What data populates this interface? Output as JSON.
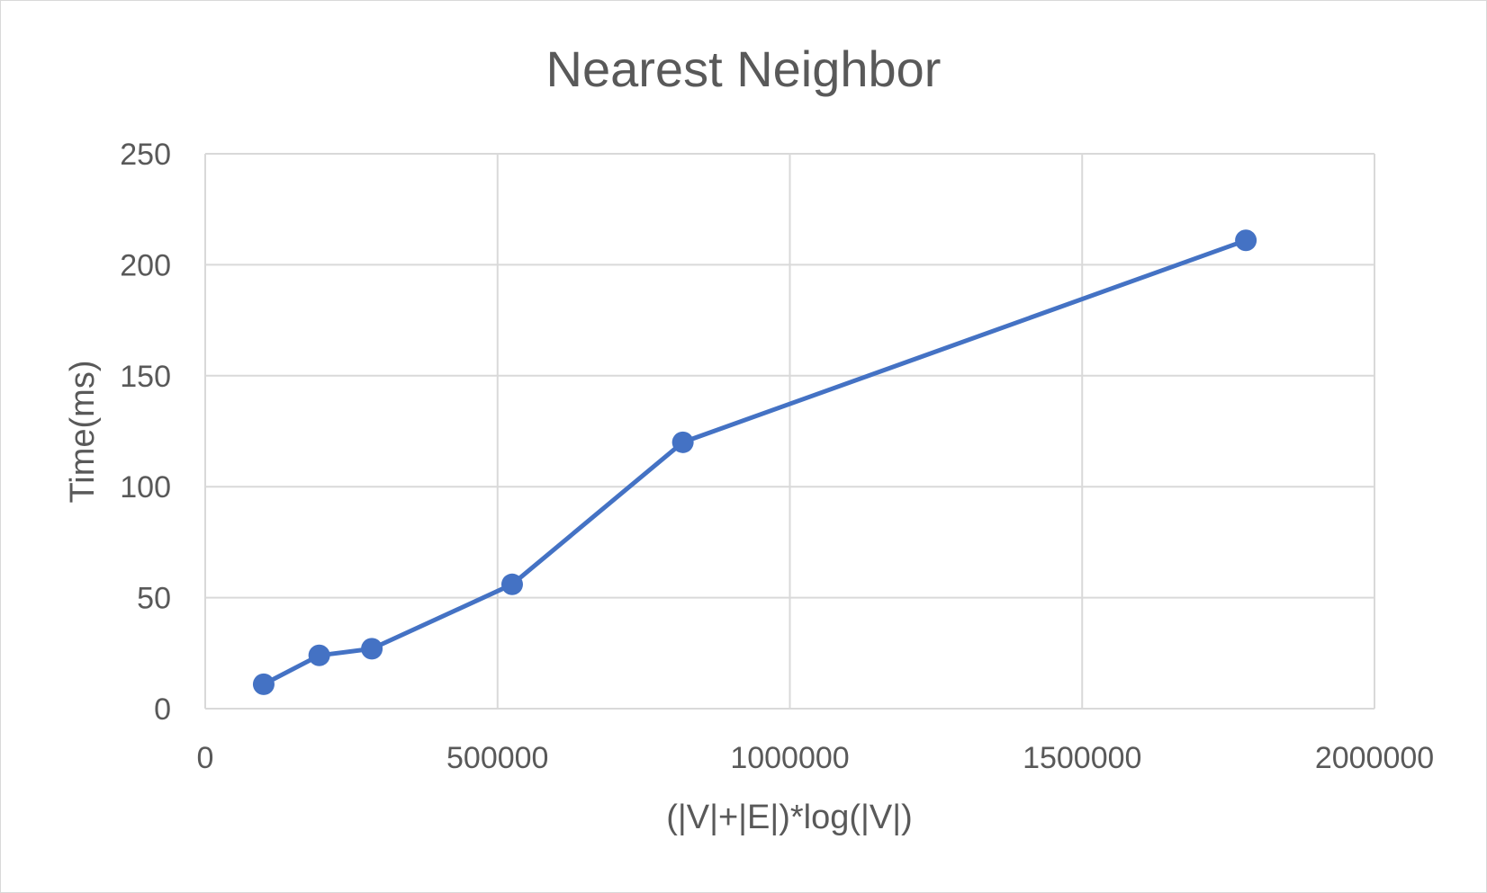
{
  "chart_data": {
    "type": "scatter",
    "title": "Nearest Neighbor",
    "xlabel": "(|V|+|E|)*log(|V|)",
    "ylabel": "Time(ms)",
    "xlim": [
      0,
      2000000
    ],
    "ylim": [
      0,
      250
    ],
    "x_ticks": [
      0,
      500000,
      1000000,
      1500000,
      2000000
    ],
    "y_ticks": [
      0,
      50,
      100,
      150,
      200,
      250
    ],
    "grid": true,
    "legend": "none",
    "series": [
      {
        "color": "#4472c4",
        "points": [
          {
            "x": 100000,
            "y": 11
          },
          {
            "x": 195000,
            "y": 24
          },
          {
            "x": 285000,
            "y": 27
          },
          {
            "x": 525000,
            "y": 56
          },
          {
            "x": 817000,
            "y": 120
          },
          {
            "x": 1780000,
            "y": 211
          }
        ]
      }
    ]
  }
}
